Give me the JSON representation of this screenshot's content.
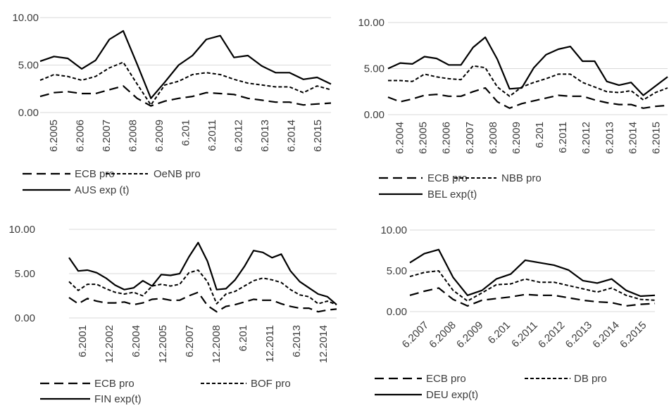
{
  "chart_data": [
    {
      "type": "line",
      "ylim": [
        0,
        10
      ],
      "yticks": [
        "0.00",
        "5.00",
        "10.00"
      ],
      "x_tick_labels": [
        "6.2005",
        "6.2006",
        "6.2007",
        "6.2008",
        "6.2009",
        "6.201",
        "6.2011",
        "6.2012",
        "6.2013",
        "6.2014",
        "6.2015"
      ],
      "x_tick_rotation": 90,
      "legend": [
        {
          "name": "ECB pro",
          "style": "long-dash"
        },
        {
          "name": "OeNB pro",
          "style": "short-dash"
        },
        {
          "name": "AUS exp (t)",
          "style": "solid"
        }
      ],
      "series": [
        {
          "name": "ECB pro",
          "values": [
            1.7,
            2.1,
            2.2,
            2.0,
            2.0,
            2.4,
            2.8,
            1.5,
            0.7,
            1.2,
            1.5,
            1.7,
            2.1,
            2.0,
            1.9,
            1.5,
            1.3,
            1.1,
            1.1,
            0.8,
            0.9,
            1.0
          ]
        },
        {
          "name": "OeNB pro",
          "values": [
            3.4,
            4.0,
            3.8,
            3.4,
            3.8,
            4.7,
            5.3,
            3.0,
            0.8,
            2.9,
            3.3,
            4.0,
            4.2,
            4.0,
            3.5,
            3.1,
            2.9,
            2.7,
            2.7,
            2.1,
            2.8,
            2.4
          ]
        },
        {
          "name": "AUS exp (t)",
          "values": [
            5.4,
            5.9,
            5.7,
            4.6,
            5.5,
            7.7,
            8.6,
            5.1,
            1.5,
            3.2,
            5.0,
            6.0,
            7.7,
            8.1,
            5.8,
            6.0,
            4.9,
            4.2,
            4.2,
            3.5,
            3.7,
            3.0
          ]
        }
      ]
    },
    {
      "type": "line",
      "ylim": [
        0,
        10
      ],
      "yticks": [
        "0.00",
        "5.00",
        "10.00"
      ],
      "x_tick_labels": [
        "6.2004",
        "6.2005",
        "6.2006",
        "6.2007",
        "6.2008",
        "6.2009",
        "6.201",
        "6.2011",
        "6.2012",
        "6.2013",
        "6.2014",
        "6.2015"
      ],
      "x_tick_rotation": 90,
      "legend": [
        {
          "name": "ECB pro",
          "style": "long-dash"
        },
        {
          "name": "NBB pro",
          "style": "short-dash"
        },
        {
          "name": "BEL exp(t)",
          "style": "solid"
        }
      ],
      "series": [
        {
          "name": "ECB pro",
          "values": [
            1.9,
            1.4,
            1.7,
            2.1,
            2.2,
            2.0,
            2.0,
            2.5,
            2.9,
            1.4,
            0.7,
            1.2,
            1.5,
            1.8,
            2.1,
            2.0,
            2.0,
            1.6,
            1.3,
            1.1,
            1.1,
            0.7,
            0.9,
            1.0
          ]
        },
        {
          "name": "NBB pro",
          "values": [
            3.7,
            3.7,
            3.6,
            4.4,
            4.1,
            3.9,
            3.8,
            5.3,
            5.1,
            3.0,
            2.0,
            3.0,
            3.5,
            3.9,
            4.4,
            4.4,
            3.5,
            3.0,
            2.5,
            2.4,
            2.6,
            1.6,
            2.4,
            2.9
          ]
        },
        {
          "name": "BEL exp(t)",
          "values": [
            5.0,
            5.6,
            5.5,
            6.3,
            6.1,
            5.4,
            5.4,
            7.3,
            8.4,
            6.0,
            2.8,
            2.9,
            5.1,
            6.5,
            7.1,
            7.4,
            5.8,
            5.8,
            3.6,
            3.2,
            3.5,
            2.1,
            3.1,
            4.1
          ]
        }
      ]
    },
    {
      "type": "line",
      "ylim": [
        0,
        10
      ],
      "yticks": [
        "0.00",
        "5.00",
        "10.00"
      ],
      "x_tick_labels": [
        "6.2001",
        "12.2002",
        "6.2004",
        "12.2005",
        "6.2007",
        "12.2008",
        "6.201",
        "12.2011",
        "6.2013",
        "12.2014"
      ],
      "x_tick_rotation": 90,
      "legend": [
        {
          "name": "ECB pro",
          "style": "long-dash"
        },
        {
          "name": "BOF pro",
          "style": "short-dash"
        },
        {
          "name": "FIN exp(t)",
          "style": "solid"
        }
      ],
      "series": [
        {
          "name": "ECB pro",
          "values": [
            2.3,
            1.6,
            2.2,
            1.9,
            1.7,
            1.7,
            1.8,
            1.5,
            1.7,
            2.1,
            2.2,
            2.0,
            2.0,
            2.5,
            2.9,
            1.4,
            0.7,
            1.3,
            1.5,
            1.8,
            2.1,
            2.0,
            2.0,
            1.6,
            1.3,
            1.1,
            1.1,
            0.7,
            0.9,
            1.0
          ]
        },
        {
          "name": "BOF pro",
          "values": [
            4.1,
            3.1,
            3.8,
            3.8,
            3.3,
            2.9,
            2.7,
            2.9,
            2.5,
            3.6,
            3.8,
            3.6,
            3.8,
            5.1,
            5.4,
            4.1,
            1.6,
            2.7,
            3.0,
            3.6,
            4.2,
            4.5,
            4.3,
            4.0,
            3.2,
            2.6,
            2.4,
            1.6,
            1.9,
            1.5
          ]
        },
        {
          "name": "FIN exp(t)",
          "values": [
            6.8,
            5.3,
            5.4,
            5.1,
            4.5,
            3.7,
            3.2,
            3.4,
            4.2,
            3.6,
            4.9,
            4.8,
            5.0,
            6.9,
            8.5,
            6.4,
            3.2,
            3.3,
            4.3,
            5.8,
            7.6,
            7.4,
            6.8,
            7.2,
            5.3,
            4.1,
            3.4,
            2.7,
            2.4,
            1.5
          ]
        }
      ]
    },
    {
      "type": "line",
      "ylim": [
        0,
        10
      ],
      "yticks": [
        "0.00",
        "5.00",
        "10.00"
      ],
      "x_tick_labels": [
        "6.2007",
        "6.2008",
        "6.2009",
        "6.201",
        "6.2011",
        "6.2012",
        "6.2013",
        "6.2014",
        "6.2015"
      ],
      "x_tick_rotation": 45,
      "legend": [
        {
          "name": "ECB pro",
          "style": "long-dash"
        },
        {
          "name": "DB pro",
          "style": "short-dash"
        },
        {
          "name": "DEU exp(t)",
          "style": "solid"
        }
      ],
      "series": [
        {
          "name": "ECB pro",
          "values": [
            2.0,
            2.5,
            2.9,
            1.5,
            0.7,
            1.4,
            1.6,
            1.8,
            2.1,
            2.0,
            2.0,
            1.7,
            1.4,
            1.2,
            1.1,
            0.7,
            0.9,
            1.0
          ]
        },
        {
          "name": "DB pro",
          "values": [
            4.3,
            4.8,
            5.0,
            2.6,
            1.3,
            2.3,
            3.3,
            3.4,
            4.0,
            3.6,
            3.6,
            3.2,
            2.8,
            2.4,
            2.9,
            2.0,
            1.5,
            1.4
          ]
        },
        {
          "name": "DEU exp(t)",
          "values": [
            6.0,
            7.1,
            7.6,
            4.2,
            2.0,
            2.6,
            4.0,
            4.6,
            6.3,
            6.0,
            5.7,
            5.1,
            3.8,
            3.5,
            4.0,
            2.6,
            1.9,
            2.0
          ]
        }
      ]
    }
  ]
}
